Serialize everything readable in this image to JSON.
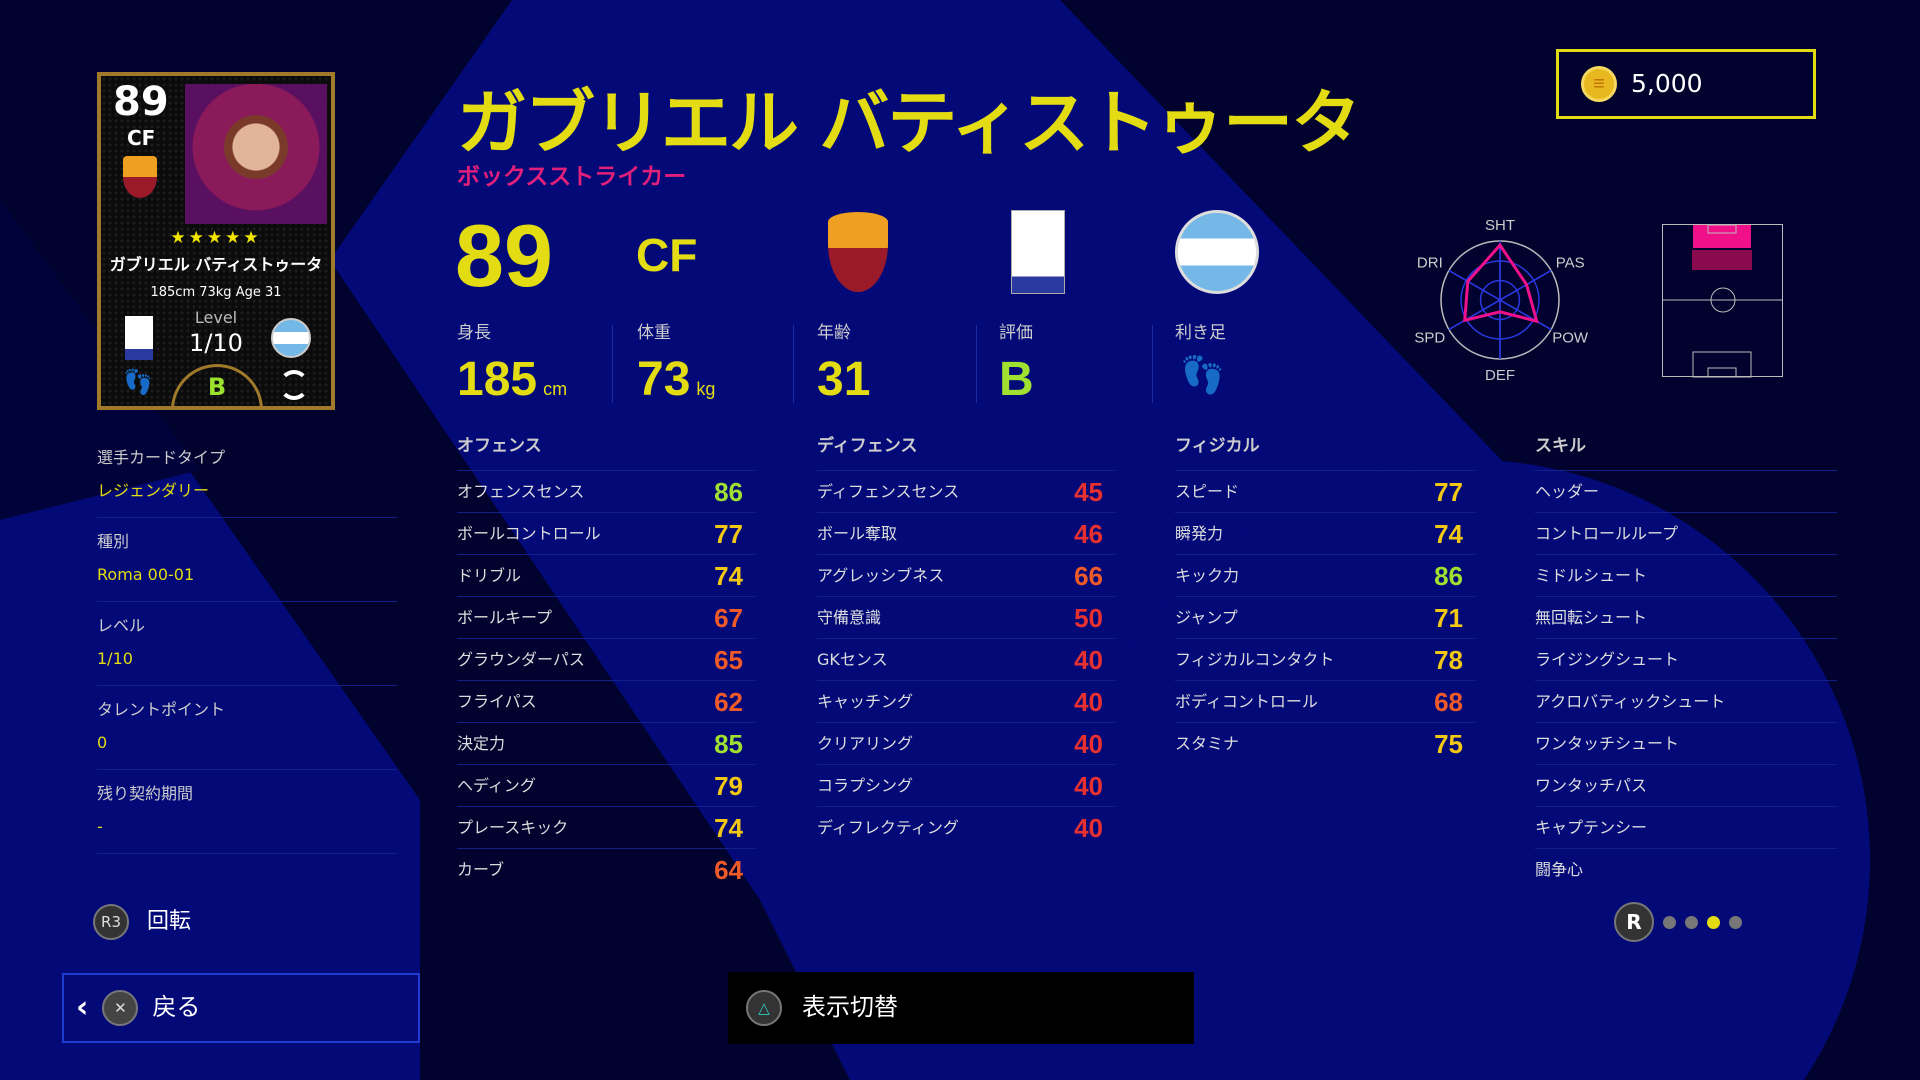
{
  "card": {
    "rating": "89",
    "position": "CF",
    "stars": "★★★★★",
    "name": "ガブリエル バティストゥータ",
    "info": "185cm  73kg  Age 31",
    "level_label": "Level",
    "level": "1/10",
    "grade": "B"
  },
  "player": {
    "name": "ガブリエル バティストゥータ",
    "playstyle": "ボックスストライカー",
    "rating": "89",
    "position": "CF"
  },
  "stats": [
    {
      "label": "身長",
      "value": "185",
      "unit": "cm"
    },
    {
      "label": "体重",
      "value": "73",
      "unit": "kg"
    },
    {
      "label": "年齢",
      "value": "31",
      "unit": ""
    },
    {
      "label": "評価",
      "value": "B",
      "unit": ""
    },
    {
      "label": "利き足",
      "value": "",
      "unit": ""
    }
  ],
  "coins": "5,000",
  "radar": {
    "labels": [
      "SHT",
      "PAS",
      "POW",
      "DEF",
      "SPD",
      "DRI"
    ],
    "values": [
      0.93,
      0.52,
      0.72,
      0.2,
      0.69,
      0.63
    ]
  },
  "info": [
    {
      "label": "選手カードタイプ",
      "value": "レジェンダリー"
    },
    {
      "label": "種別",
      "value": "Roma 00-01"
    },
    {
      "label": "レベル",
      "value": "1/10"
    },
    {
      "label": "タレントポイント",
      "value": "0"
    },
    {
      "label": "残り契約期間",
      "value": "-"
    }
  ],
  "columns": [
    {
      "title": "オフェンス",
      "rows": [
        [
          "オフェンスセンス",
          86
        ],
        [
          "ボールコントロール",
          77
        ],
        [
          "ドリブル",
          74
        ],
        [
          "ボールキープ",
          67
        ],
        [
          "グラウンダーパス",
          65
        ],
        [
          "フライパス",
          62
        ],
        [
          "決定力",
          85
        ],
        [
          "ヘディング",
          79
        ],
        [
          "プレースキック",
          74
        ],
        [
          "カーブ",
          64
        ]
      ]
    },
    {
      "title": "ディフェンス",
      "rows": [
        [
          "ディフェンスセンス",
          45
        ],
        [
          "ボール奪取",
          46
        ],
        [
          "アグレッシブネス",
          66
        ],
        [
          "守備意識",
          50
        ],
        [
          "GKセンス",
          40
        ],
        [
          "キャッチング",
          40
        ],
        [
          "クリアリング",
          40
        ],
        [
          "コラプシング",
          40
        ],
        [
          "ディフレクティング",
          40
        ]
      ]
    },
    {
      "title": "フィジカル",
      "rows": [
        [
          "スピード",
          77
        ],
        [
          "瞬発力",
          74
        ],
        [
          "キック力",
          86
        ],
        [
          "ジャンプ",
          71
        ],
        [
          "フィジカルコンタクト",
          78
        ],
        [
          "ボディコントロール",
          68
        ],
        [
          "スタミナ",
          75
        ]
      ]
    },
    {
      "title": "スキル",
      "rows": [
        [
          "ヘッダー"
        ],
        [
          "コントロールループ"
        ],
        [
          "ミドルシュート"
        ],
        [
          "無回転シュート"
        ],
        [
          "ライジングシュート"
        ],
        [
          "アクロバティックシュート"
        ],
        [
          "ワンタッチシュート"
        ],
        [
          "ワンタッチパス"
        ],
        [
          "キャプテンシー"
        ],
        [
          "闘争心"
        ]
      ]
    }
  ],
  "colors": {
    "green": "#a0e030",
    "yellow": "#f2c814",
    "orange": "#f05a28",
    "red": "#e83030",
    "accent": "#e4dc12",
    "pink": "#e0207a"
  },
  "controls": {
    "r3_button": "R3",
    "rotate": "回転",
    "back_button": "✕",
    "back": "戻る",
    "toggle_button": "△",
    "toggle": "表示切替",
    "page_button": "R",
    "pages": 4,
    "current_page": 3
  }
}
